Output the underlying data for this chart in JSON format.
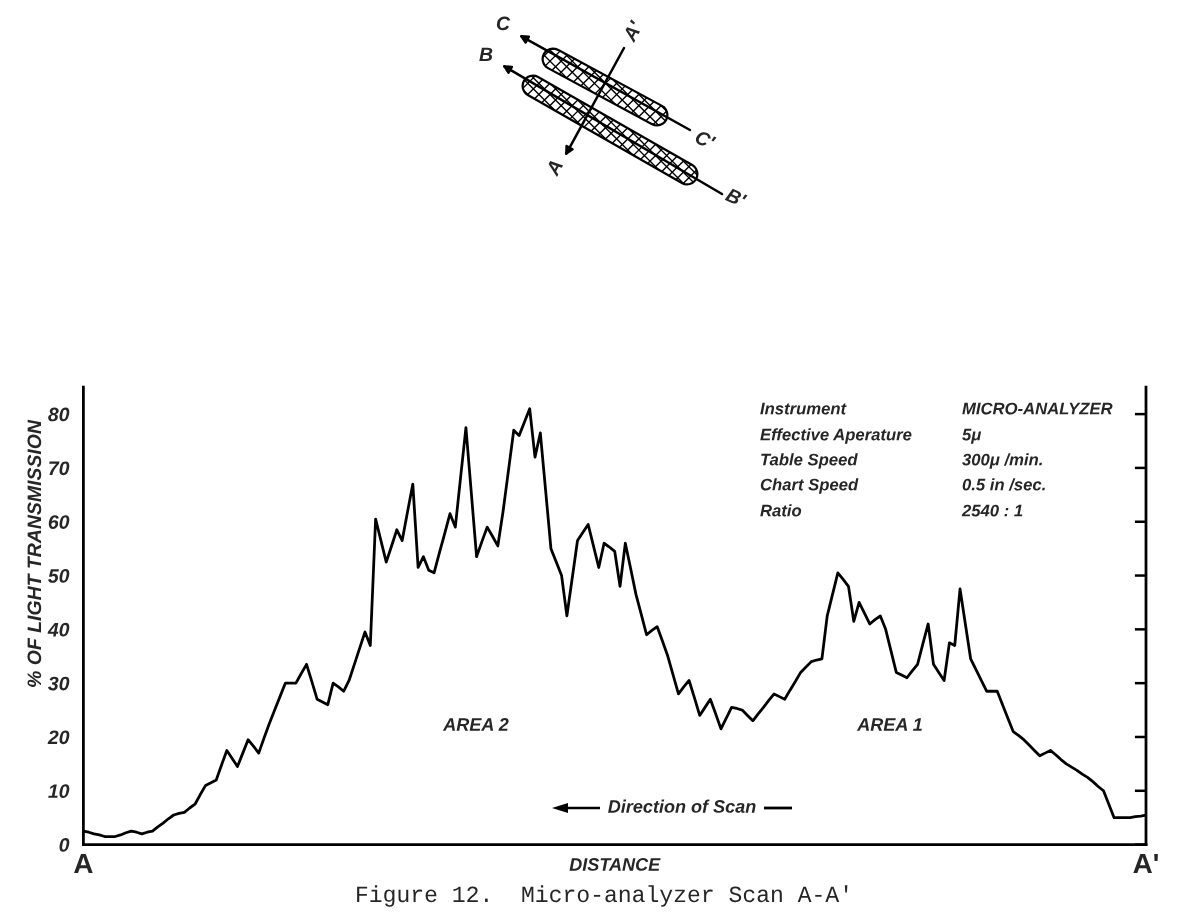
{
  "chart_data": {
    "type": "line",
    "xlabel": "DISTANCE",
    "ylabel": "% OF LIGHT TRANSMISSION",
    "categories": [
      "A",
      null,
      null,
      null,
      null,
      null,
      null,
      null,
      null,
      null,
      null,
      null,
      null,
      null,
      null,
      null,
      null,
      null,
      null,
      null,
      null,
      null,
      null,
      null,
      null,
      null,
      null,
      null,
      null,
      null,
      null,
      null,
      null,
      null,
      null,
      null,
      null,
      null,
      null,
      null,
      null,
      null,
      null,
      null,
      null,
      null,
      null,
      null,
      null,
      null,
      null,
      null,
      null,
      null,
      null,
      null,
      null,
      null,
      null,
      null,
      null,
      null,
      null,
      null,
      null,
      null,
      null,
      null,
      null,
      null,
      null,
      null,
      null,
      null,
      null,
      null,
      null,
      null,
      null,
      null,
      null,
      null,
      null,
      null,
      null,
      null,
      null,
      null,
      null,
      null,
      null,
      null,
      null,
      null,
      null,
      null,
      null,
      null,
      null,
      null,
      null,
      null,
      null,
      null,
      null,
      null,
      null,
      null,
      null,
      null,
      null,
      null,
      null,
      null,
      null,
      null,
      null,
      null,
      null,
      null,
      null,
      null,
      null,
      null,
      null,
      null,
      null,
      null,
      null,
      null,
      null,
      null,
      null,
      null,
      null,
      null,
      null,
      null,
      null,
      null,
      null,
      null,
      null,
      null,
      null,
      null,
      null,
      null,
      null,
      null,
      null,
      null,
      null,
      null,
      null,
      null,
      null,
      null,
      null,
      null,
      null,
      null,
      null,
      null,
      null,
      null,
      null,
      null,
      null,
      null,
      null,
      null,
      null,
      null,
      null,
      null,
      null,
      null,
      null,
      null,
      null,
      null,
      null,
      null,
      null,
      null,
      null,
      null,
      null,
      null,
      null,
      null,
      null,
      null,
      null,
      null,
      null,
      null,
      null,
      null,
      "A'"
    ],
    "series": [
      {
        "color": "#000000",
        "values": [
          2.5,
          2.3,
          2,
          1.8,
          1.5,
          1.5,
          1.5,
          1.8,
          2.2,
          2.5,
          2.3,
          2,
          2.3,
          2.5,
          3.3,
          4,
          4.8,
          5.5,
          5.8,
          6,
          6.8,
          7.5,
          9.3,
          11,
          11.5,
          12,
          14.8,
          17.5,
          16,
          14.5,
          17,
          19.5,
          18.3,
          17,
          19.8,
          22.5,
          25,
          27.5,
          30,
          30,
          30,
          31.8,
          33.5,
          30.3,
          27,
          26.5,
          26,
          30,
          29.3,
          28.5,
          30.5,
          33.5,
          36.5,
          39.5,
          37,
          60.5,
          56.5,
          52.5,
          55.5,
          58.5,
          56.5,
          61.8,
          67,
          51.5,
          53.5,
          51,
          50.5,
          54.2,
          57.8,
          61.5,
          59,
          68.3,
          77.5,
          65.5,
          53.5,
          56.3,
          59,
          57.3,
          55.5,
          62,
          69.5,
          77,
          76,
          78.5,
          81,
          72,
          76.5,
          65.8,
          55,
          52.5,
          50,
          42.5,
          49.5,
          56.5,
          58,
          59.5,
          55.5,
          51.5,
          56,
          55.3,
          54.5,
          48,
          56,
          51.3,
          46.5,
          42.8,
          39,
          39.8,
          40.5,
          37.8,
          35,
          31.5,
          28,
          29.3,
          30.5,
          27.3,
          24,
          25.5,
          27,
          24.3,
          21.5,
          23.5,
          25.5,
          25.3,
          25,
          24,
          23,
          24.3,
          25.5,
          26.8,
          28,
          27.5,
          27,
          28.7,
          30.3,
          32,
          33,
          34,
          34.3,
          34.5,
          42.5,
          46.5,
          50.5,
          49.3,
          48,
          41.5,
          45,
          43,
          41,
          41.8,
          42.5,
          40,
          36,
          32,
          31.5,
          31,
          32.3,
          33.5,
          37.3,
          41,
          33.5,
          32,
          30.5,
          37.5,
          37,
          47.5,
          41,
          34.5,
          32.5,
          30.5,
          28.5,
          28.5,
          28.5,
          26,
          23.5,
          21,
          20.3,
          19.5,
          18.5,
          17.5,
          16.5,
          17,
          17.5,
          16.7,
          15.8,
          15,
          14.4,
          13.8,
          13.1,
          12.5,
          11.7,
          10.8,
          10,
          7.5,
          5,
          5,
          5,
          5,
          5.2,
          5.3,
          5.5
        ]
      }
    ],
    "ylim": [
      0,
      85
    ],
    "yticks": [
      0,
      10,
      20,
      30,
      40,
      50,
      60,
      70,
      80
    ],
    "grid": false,
    "line_style": "solid",
    "annotations": [
      "C",
      "A'",
      "B",
      "C'",
      "A",
      "B'",
      "Instrument",
      "MICRO-ANALYZER",
      "Effective Aperature",
      "5μ",
      "Table Speed",
      "300μ /min.",
      "Chart Speed",
      "0.5 in /sec.",
      "Ratio",
      "2540 : 1",
      "AREA 2",
      "AREA 1",
      "Direction of Scan",
      "Figure 12.  Micro-analyzer Scan A-A'"
    ]
  }
}
